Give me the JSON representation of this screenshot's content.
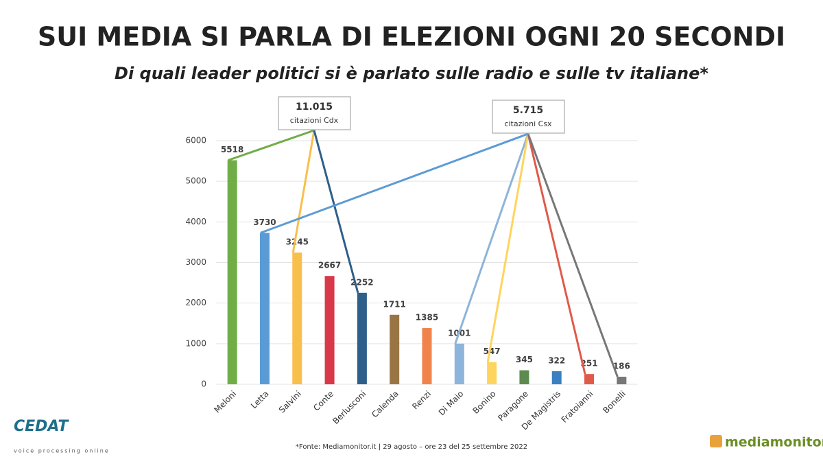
{
  "chart_data": {
    "type": "bar",
    "title": "SUI MEDIA SI PARLA DI ELEZIONI OGNI 20 SECONDI",
    "subtitle": "Di quali leader politici si è parlato sulle radio e sulle tv italiane*",
    "categories": [
      "Meloni",
      "Letta",
      "Salvini",
      "Conte",
      "Berlusconi",
      "Calenda",
      "Renzi",
      "Di Maio",
      "Bonino",
      "Paragone",
      "De Magistris",
      "Fratoianni",
      "Bonelli"
    ],
    "values": [
      5518,
      3730,
      3245,
      2667,
      2252,
      1711,
      1385,
      1001,
      547,
      345,
      322,
      251,
      186
    ],
    "colors": [
      "#70ad47",
      "#5b9bd5",
      "#f9bf4b",
      "#d9384a",
      "#2e5f8a",
      "#9a7544",
      "#f0834b",
      "#8db4da",
      "#ffd45e",
      "#5d8a4e",
      "#3a7fc1",
      "#e05a4a",
      "#777777"
    ],
    "ylim": [
      0,
      6000
    ],
    "yticks": [
      0,
      1000,
      2000,
      3000,
      4000,
      5000,
      6000
    ],
    "grid": true,
    "annotations": [
      {
        "text": "11.015",
        "subtext": "citazioni Cdx"
      },
      {
        "text": "5.715",
        "subtext": "citazioni Csx"
      }
    ],
    "source": "*Fonte: Mediamonitor.it | 29 agosto – ore 23 del 25 settembre 2022"
  },
  "logos": {
    "left": "CEDAT",
    "left_tagline": "voice processing online",
    "right": "mediamonitor.it"
  }
}
